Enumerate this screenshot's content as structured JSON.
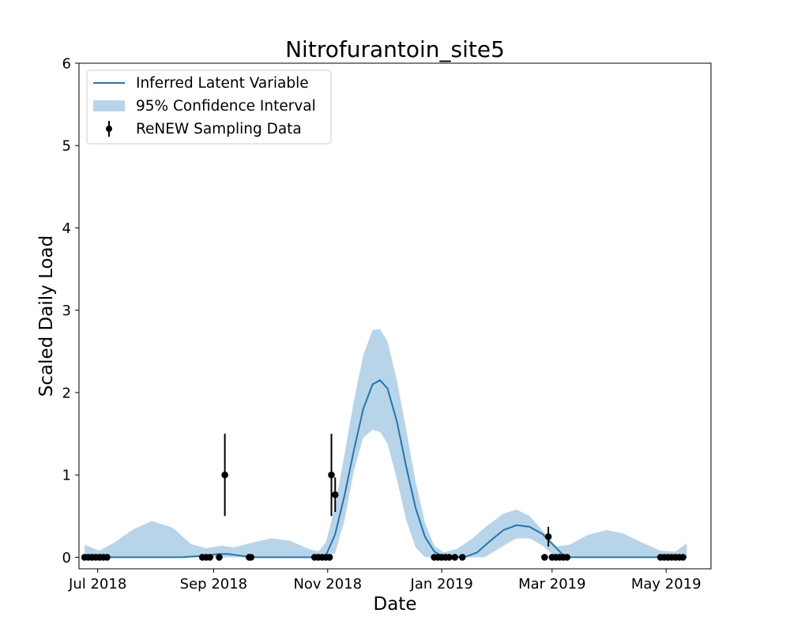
{
  "chart_data": {
    "type": "line",
    "title": "Nitrofurantoin_site5",
    "xlabel": "Date",
    "ylabel": "Scaled Daily Load",
    "xlim": [
      "2018-06-21",
      "2019-05-25"
    ],
    "ylim": [
      -0.14,
      6
    ],
    "x_ticks": [
      {
        "date": "2018-07-01",
        "label": "Jul 2018"
      },
      {
        "date": "2018-09-01",
        "label": "Sep 2018"
      },
      {
        "date": "2018-11-01",
        "label": "Nov 2018"
      },
      {
        "date": "2019-01-01",
        "label": "Jan 2019"
      },
      {
        "date": "2019-03-01",
        "label": "Mar 2019"
      },
      {
        "date": "2019-05-01",
        "label": "May 2019"
      }
    ],
    "y_ticks": [
      0,
      1,
      2,
      3,
      4,
      5,
      6
    ],
    "grid": false,
    "legend_position": "top-left",
    "legend": [
      {
        "label": "Inferred Latent Variable",
        "kind": "line"
      },
      {
        "label": "95% Confidence Interval",
        "kind": "band"
      },
      {
        "label": "ReNEW Sampling Data",
        "kind": "errorbar"
      }
    ],
    "colors": {
      "line": "#1f77b4",
      "band": "#b8d4e8",
      "points": "#000000"
    },
    "series": [
      {
        "name": "Inferred Latent Variable",
        "x": [
          "2018-06-24",
          "2018-07-07",
          "2018-07-20",
          "2018-08-02",
          "2018-08-15",
          "2018-08-28",
          "2018-09-03",
          "2018-09-09",
          "2018-09-15",
          "2018-09-22",
          "2018-10-05",
          "2018-10-18",
          "2018-10-26",
          "2018-10-31",
          "2018-11-05",
          "2018-11-10",
          "2018-11-15",
          "2018-11-20",
          "2018-11-25",
          "2018-11-29",
          "2018-12-03",
          "2018-12-08",
          "2018-12-13",
          "2018-12-18",
          "2018-12-23",
          "2018-12-28",
          "2019-01-02",
          "2019-01-07",
          "2019-01-13",
          "2019-01-20",
          "2019-01-27",
          "2019-02-03",
          "2019-02-10",
          "2019-02-17",
          "2019-02-24",
          "2019-03-03",
          "2019-03-08",
          "2019-03-15",
          "2019-03-28",
          "2019-04-10",
          "2019-04-23",
          "2019-05-06",
          "2019-05-12"
        ],
        "y": [
          0,
          0,
          0,
          0,
          0,
          0.02,
          0.04,
          0.04,
          0.02,
          0,
          0,
          0,
          0,
          0.02,
          0.28,
          0.75,
          1.3,
          1.8,
          2.1,
          2.15,
          2.05,
          1.65,
          1.1,
          0.6,
          0.25,
          0.07,
          0,
          0,
          0,
          0.06,
          0.2,
          0.33,
          0.39,
          0.37,
          0.28,
          0.12,
          0,
          0,
          0,
          0,
          0,
          0,
          0
        ]
      },
      {
        "name": "95% Confidence Interval",
        "x": [
          "2018-06-24",
          "2018-07-02",
          "2018-07-10",
          "2018-07-20",
          "2018-07-30",
          "2018-08-10",
          "2018-08-20",
          "2018-08-28",
          "2018-09-05",
          "2018-09-12",
          "2018-09-22",
          "2018-10-02",
          "2018-10-12",
          "2018-10-22",
          "2018-10-27",
          "2018-10-31",
          "2018-11-05",
          "2018-11-10",
          "2018-11-15",
          "2018-11-20",
          "2018-11-25",
          "2018-11-29",
          "2018-12-03",
          "2018-12-08",
          "2018-12-13",
          "2018-12-18",
          "2018-12-23",
          "2018-12-28",
          "2019-01-02",
          "2019-01-09",
          "2019-01-17",
          "2019-01-24",
          "2019-02-03",
          "2019-02-10",
          "2019-02-17",
          "2019-02-24",
          "2019-03-03",
          "2019-03-10",
          "2019-03-20",
          "2019-03-30",
          "2019-04-08",
          "2019-04-18",
          "2019-04-28",
          "2019-05-06",
          "2019-05-12"
        ],
        "upper": [
          0.15,
          0.08,
          0.18,
          0.34,
          0.44,
          0.36,
          0.16,
          0.11,
          0.14,
          0.12,
          0.18,
          0.23,
          0.2,
          0.1,
          0.07,
          0.18,
          0.62,
          1.25,
          1.9,
          2.45,
          2.76,
          2.77,
          2.62,
          2.15,
          1.55,
          0.92,
          0.42,
          0.14,
          0.06,
          0.1,
          0.22,
          0.36,
          0.53,
          0.58,
          0.5,
          0.32,
          0.13,
          0.15,
          0.27,
          0.33,
          0.29,
          0.18,
          0.08,
          0.07,
          0.17
        ],
        "lower": [
          0,
          0,
          0,
          0,
          0,
          0,
          0,
          0,
          0,
          0,
          0,
          0,
          0,
          0,
          0,
          0,
          0.05,
          0.45,
          1.05,
          1.45,
          1.55,
          1.52,
          1.38,
          0.95,
          0.45,
          0.12,
          0,
          0,
          0,
          0,
          0,
          0,
          0.14,
          0.23,
          0.23,
          0.14,
          0,
          0,
          0,
          0,
          0,
          0,
          0,
          0,
          0
        ]
      },
      {
        "name": "ReNEW Sampling Data",
        "points": [
          {
            "x": "2018-06-24",
            "y": 0
          },
          {
            "x": "2018-06-26",
            "y": 0
          },
          {
            "x": "2018-06-28",
            "y": 0
          },
          {
            "x": "2018-06-30",
            "y": 0
          },
          {
            "x": "2018-07-02",
            "y": 0
          },
          {
            "x": "2018-07-04",
            "y": 0
          },
          {
            "x": "2018-07-06",
            "y": 0
          },
          {
            "x": "2018-08-26",
            "y": 0
          },
          {
            "x": "2018-08-28",
            "y": 0
          },
          {
            "x": "2018-08-30",
            "y": 0
          },
          {
            "x": "2018-09-04",
            "y": 0
          },
          {
            "x": "2018-09-07",
            "y": 1,
            "err": 0.5
          },
          {
            "x": "2018-09-20",
            "y": 0
          },
          {
            "x": "2018-09-21",
            "y": 0
          },
          {
            "x": "2018-10-25",
            "y": 0
          },
          {
            "x": "2018-10-27",
            "y": 0
          },
          {
            "x": "2018-10-29",
            "y": 0
          },
          {
            "x": "2018-10-31",
            "y": 0
          },
          {
            "x": "2018-11-02",
            "y": 0
          },
          {
            "x": "2018-11-03",
            "y": 1,
            "err": 0.5
          },
          {
            "x": "2018-11-05",
            "y": 0.76,
            "err": 0.21
          },
          {
            "x": "2018-12-28",
            "y": 0
          },
          {
            "x": "2018-12-30",
            "y": 0
          },
          {
            "x": "2019-01-01",
            "y": 0
          },
          {
            "x": "2019-01-03",
            "y": 0
          },
          {
            "x": "2019-01-05",
            "y": 0
          },
          {
            "x": "2019-01-08",
            "y": 0
          },
          {
            "x": "2019-01-12",
            "y": 0
          },
          {
            "x": "2019-02-25",
            "y": 0
          },
          {
            "x": "2019-02-27",
            "y": 0.25,
            "err": 0.12
          },
          {
            "x": "2019-03-01",
            "y": 0
          },
          {
            "x": "2019-03-03",
            "y": 0
          },
          {
            "x": "2019-03-05",
            "y": 0
          },
          {
            "x": "2019-03-07",
            "y": 0
          },
          {
            "x": "2019-03-09",
            "y": 0
          },
          {
            "x": "2019-04-28",
            "y": 0
          },
          {
            "x": "2019-04-30",
            "y": 0
          },
          {
            "x": "2019-05-02",
            "y": 0
          },
          {
            "x": "2019-05-04",
            "y": 0
          },
          {
            "x": "2019-05-06",
            "y": 0
          },
          {
            "x": "2019-05-08",
            "y": 0
          },
          {
            "x": "2019-05-10",
            "y": 0
          }
        ]
      }
    ]
  }
}
